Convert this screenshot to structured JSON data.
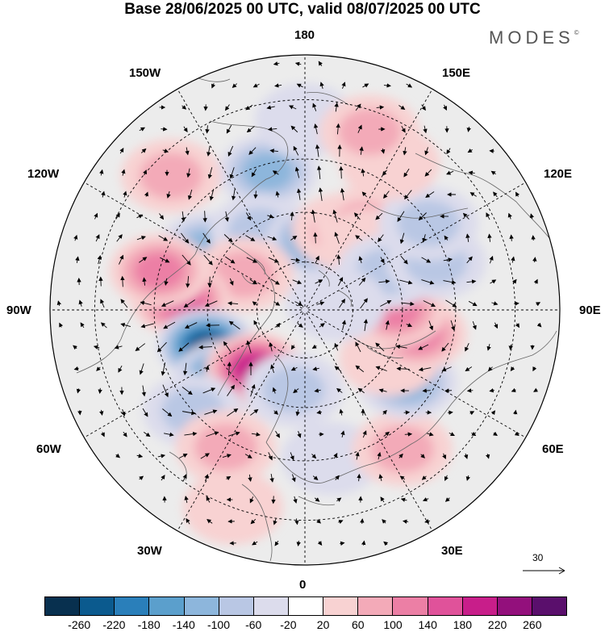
{
  "title": "Base 28/06/2025 00 UTC, valid 08/07/2025 00 UTC",
  "brand": "MODES",
  "brand_mark": "©",
  "longitude_labels": {
    "top": "180",
    "bottom": "0",
    "left": "90W",
    "right": "90E",
    "upper_left_1": "150W",
    "upper_left_2": "120W",
    "upper_right_1": "150E",
    "upper_right_2": "120E",
    "lower_left_1": "60W",
    "lower_left_2": "30W",
    "lower_right_1": "60E",
    "lower_right_2": "30E"
  },
  "reference_vector": "30",
  "colorbar": {
    "colors": [
      "#08304f",
      "#0b5a8e",
      "#2a7fba",
      "#5b9fcc",
      "#8db6dc",
      "#b9c7e4",
      "#dcdcec",
      "#ffffff",
      "#f8d2d2",
      "#f3aab8",
      "#ec7fa5",
      "#e0529a",
      "#c81e8a",
      "#93107c",
      "#5a0f6c"
    ],
    "ticks": [
      "-260",
      "-220",
      "-180",
      "-140",
      "-100",
      "-60",
      "-20",
      "20",
      "60",
      "100",
      "140",
      "180",
      "220",
      "260"
    ]
  },
  "anomalies": [
    {
      "lon": -165,
      "lat": 47,
      "value": -120
    },
    {
      "lon": -122,
      "lat": 55,
      "value": -110
    },
    {
      "lon": -150,
      "lat": 62,
      "value": -60
    },
    {
      "lon": 170,
      "lat": 68,
      "value": -160
    },
    {
      "lon": 155,
      "lat": 63,
      "value": 80
    },
    {
      "lon": 145,
      "lat": 58,
      "value": 60
    },
    {
      "lon": 135,
      "lat": 62,
      "value": 40
    },
    {
      "lon": -120,
      "lat": 68,
      "value": 80
    },
    {
      "lon": -95,
      "lat": 52,
      "value": 150
    },
    {
      "lon": -105,
      "lat": 45,
      "value": 110
    },
    {
      "lon": -70,
      "lat": 58,
      "value": -230
    },
    {
      "lon": -50,
      "lat": 58,
      "value": -180
    },
    {
      "lon": -40,
      "lat": 66,
      "value": 200
    },
    {
      "lon": -48,
      "lat": 45,
      "value": -60
    },
    {
      "lon": -30,
      "lat": 43,
      "value": 80
    },
    {
      "lon": -8,
      "lat": 65,
      "value": -80
    },
    {
      "lon": 10,
      "lat": 45,
      "value": -40
    },
    {
      "lon": 35,
      "lat": 40,
      "value": 60
    },
    {
      "lon": 55,
      "lat": 52,
      "value": -100
    },
    {
      "lon": 60,
      "lat": 60,
      "value": 40
    },
    {
      "lon": 78,
      "lat": 55,
      "value": 130
    },
    {
      "lon": 90,
      "lat": 62,
      "value": 120
    },
    {
      "lon": 115,
      "lat": 62,
      "value": -90
    },
    {
      "lon": 110,
      "lat": 48,
      "value": -80
    },
    {
      "lon": 125,
      "lat": 45,
      "value": -60
    },
    {
      "lon": 150,
      "lat": 40,
      "value": 40
    },
    {
      "lon": -180,
      "lat": 35,
      "value": -40
    },
    {
      "lon": 160,
      "lat": 35,
      "value": 60
    },
    {
      "lon": -135,
      "lat": 35,
      "value": 60
    },
    {
      "lon": -20,
      "lat": 30,
      "value": 40
    },
    {
      "lon": 100,
      "lat": 80,
      "value": -30
    }
  ]
}
